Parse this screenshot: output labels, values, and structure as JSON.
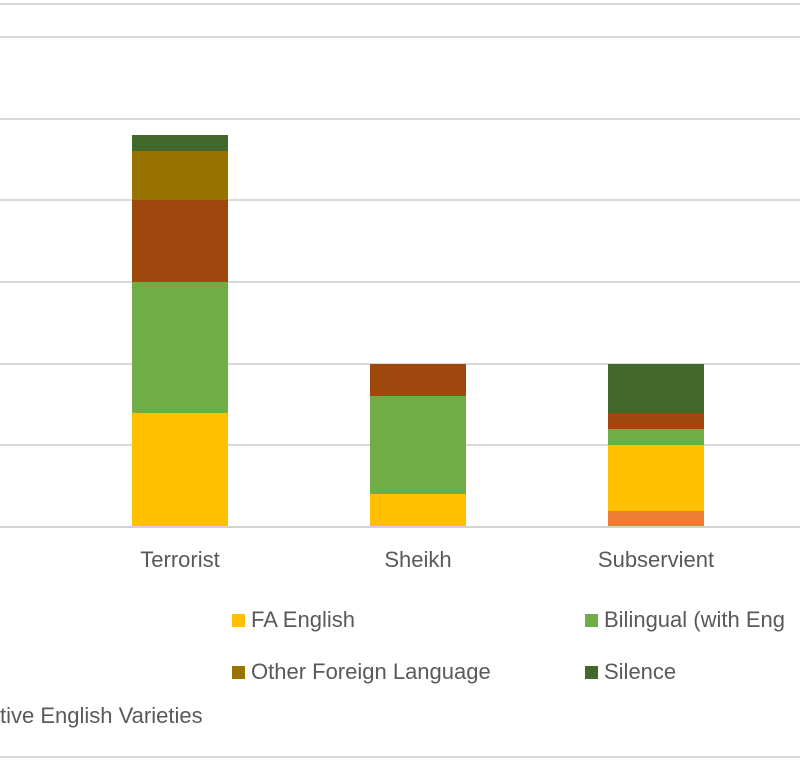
{
  "chart_data": {
    "type": "bar",
    "stacked": true,
    "title": "",
    "categories": [
      "Terrorist",
      "Sheikh",
      "Subservient"
    ],
    "series": [
      {
        "name": "",
        "color": "#ED7D31",
        "values": [
          0,
          0,
          1
        ],
        "legend_label_visible": false
      },
      {
        "name": "FA English",
        "color": "#FFC000",
        "values": [
          7,
          2,
          4
        ],
        "legend_label_visible": true
      },
      {
        "name": "Bilingual (with Eng",
        "color": "#70AD47",
        "values": [
          8,
          6,
          1
        ],
        "legend_label_visible": true,
        "clipped": "right"
      },
      {
        "name": "",
        "color": "#9E480E",
        "values": [
          5,
          2,
          1
        ],
        "legend_label_visible": false
      },
      {
        "name": "Other Foreign Language",
        "color": "#997300",
        "values": [
          3,
          0,
          0
        ],
        "legend_label_visible": true
      },
      {
        "name": "Silence",
        "color": "#43682B",
        "values": [
          1,
          0,
          3
        ],
        "legend_label_visible": true
      }
    ],
    "xlabel": "",
    "ylabel": "",
    "ylim": [
      0,
      30
    ],
    "ytick_step": 5,
    "y_axis_tick_labels_visible": false,
    "gridlines": true,
    "legend_position": "bottom"
  },
  "legend": {
    "row1": {
      "item1": "FA English",
      "item2": "Bilingual (with Eng"
    },
    "row2": {
      "item1": "Other Foreign Language",
      "item2": "Silence"
    },
    "row3": {
      "item1": "tive English Varieties"
    }
  },
  "colors": {
    "gridline": "#D9D9D9",
    "text": "#595959",
    "background": "#FFFFFF"
  }
}
